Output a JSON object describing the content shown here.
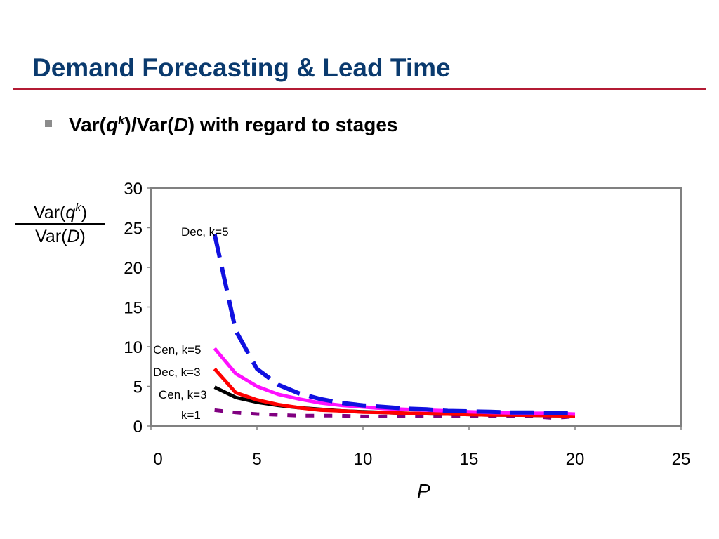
{
  "slide": {
    "title": "Demand Forecasting & Lead Time",
    "bullet": {
      "pre": "Var(",
      "q": "q",
      "k": "k",
      "mid": ")/Var(",
      "d": "D",
      "post": ") with regard to stages"
    }
  },
  "chart_data": {
    "type": "line",
    "xlabel": "P",
    "ylabel": {
      "numerator": {
        "pre": "Var(",
        "q": "q",
        "k": "k",
        "post": ")"
      },
      "denominator": {
        "pre": "Var(",
        "d": "D",
        "post": ")"
      }
    },
    "xlim": [
      0,
      25
    ],
    "ylim": [
      0,
      30
    ],
    "xticks": [
      0,
      5,
      10,
      15,
      20,
      25
    ],
    "yticks": [
      0,
      5,
      10,
      15,
      20,
      25,
      30
    ],
    "grid": false,
    "legend": "none",
    "series": [
      {
        "name": "Dec, k=5",
        "color": "#1010e0",
        "dash": "long-dash",
        "x": [
          3,
          4,
          5,
          6,
          7,
          8,
          9,
          10,
          11,
          12,
          13,
          14,
          15,
          16,
          17,
          18,
          19,
          20
        ],
        "y": [
          24.2,
          12.0,
          7.2,
          5.2,
          4.1,
          3.4,
          2.9,
          2.6,
          2.4,
          2.2,
          2.1,
          1.9,
          1.85,
          1.8,
          1.7,
          1.7,
          1.65,
          1.6
        ]
      },
      {
        "name": "Cen, k=5",
        "color": "#ff10ff",
        "dash": "solid",
        "x": [
          3,
          4,
          5,
          6,
          7,
          8,
          9,
          10,
          11,
          12,
          13,
          14,
          15,
          16,
          17,
          18,
          19,
          20
        ],
        "y": [
          9.8,
          6.6,
          5.0,
          4.0,
          3.4,
          2.9,
          2.6,
          2.4,
          2.2,
          2.1,
          2.0,
          1.9,
          1.8,
          1.7,
          1.65,
          1.6,
          1.6,
          1.5
        ]
      },
      {
        "name": "Dec, k=3",
        "color": "#ff0000",
        "dash": "solid",
        "x": [
          3,
          4,
          5,
          6,
          7,
          8,
          9,
          10,
          11,
          12,
          13,
          14,
          15,
          16,
          17,
          18,
          19,
          20
        ],
        "y": [
          7.2,
          4.2,
          3.3,
          2.7,
          2.3,
          2.0,
          1.9,
          1.75,
          1.7,
          1.6,
          1.55,
          1.5,
          1.45,
          1.4,
          1.4,
          1.35,
          1.3,
          1.25
        ]
      },
      {
        "name": "Cen, k=3",
        "color": "#000000",
        "dash": "solid",
        "x": [
          3,
          4,
          5,
          6,
          7,
          8,
          9,
          10,
          11,
          12,
          13,
          14,
          15,
          16,
          17,
          18,
          19,
          20
        ],
        "y": [
          4.9,
          3.6,
          3.0,
          2.6,
          2.3,
          2.1,
          1.9,
          1.8,
          1.7,
          1.6,
          1.55,
          1.5,
          1.45,
          1.4,
          1.4,
          1.35,
          1.3,
          1.3
        ]
      },
      {
        "name": "k=1",
        "color": "#800080",
        "dash": "short-dash",
        "x": [
          3,
          4,
          5,
          6,
          7,
          8,
          9,
          10,
          11,
          12,
          13,
          14,
          15,
          16,
          17,
          18,
          19,
          20
        ],
        "y": [
          2.0,
          1.7,
          1.5,
          1.4,
          1.3,
          1.3,
          1.3,
          1.2,
          1.2,
          1.2,
          1.2,
          1.2,
          1.2,
          1.2,
          1.2,
          1.2,
          1.0,
          1.2
        ]
      }
    ]
  }
}
